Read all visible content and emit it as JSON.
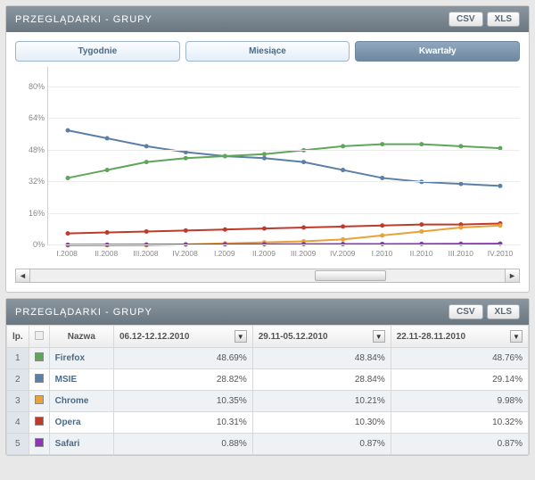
{
  "panel1": {
    "title": "PRZEGLĄDARKI - GRUPY",
    "export_csv": "CSV",
    "export_xls": "XLS",
    "tabs": {
      "weeks": "Tygodnie",
      "months": "Miesiące",
      "quarters": "Kwartały"
    },
    "chart": {
      "ylim": [
        0,
        90
      ],
      "yticks": [
        0,
        16,
        32,
        48,
        64,
        80
      ],
      "ylabels": [
        "0%",
        "16%",
        "32%",
        "48%",
        "64%",
        "80%"
      ],
      "categories": [
        "I.2008",
        "II.2008",
        "III.2008",
        "IV.2008",
        "I.2009",
        "II.2009",
        "III.2009",
        "IV.2009",
        "I.2010",
        "II.2010",
        "III.2010",
        "IV.2010"
      ],
      "grid_color": "#ececec",
      "axis_color": "#d0d0d0",
      "background": "#ffffff",
      "marker_radius": 2.5,
      "line_width": 2,
      "series": [
        {
          "name": "MSIE",
          "color": "#5b7fa6",
          "values": [
            58,
            54,
            50,
            47,
            45,
            44,
            42,
            38,
            34,
            32,
            31,
            30
          ]
        },
        {
          "name": "Firefox",
          "color": "#5fa65b",
          "values": [
            34,
            38,
            42,
            44,
            45,
            46,
            48,
            50,
            51,
            51,
            50,
            49
          ]
        },
        {
          "name": "Opera",
          "color": "#c03a2a",
          "values": [
            6,
            6.5,
            7,
            7.5,
            8,
            8.5,
            9,
            9.5,
            10,
            10.5,
            10.5,
            11
          ]
        },
        {
          "name": "Chrome",
          "color": "#e8a23a",
          "values": [
            0,
            0,
            0,
            0.5,
            1,
            1.5,
            2,
            3,
            5,
            7,
            9,
            10
          ]
        },
        {
          "name": "Safari",
          "color": "#8a3ab0",
          "values": [
            0.3,
            0.35,
            0.4,
            0.45,
            0.5,
            0.55,
            0.6,
            0.65,
            0.7,
            0.75,
            0.8,
            0.87
          ]
        }
      ]
    }
  },
  "panel2": {
    "title": "PRZEGLĄDARKI - GRUPY",
    "export_csv": "CSV",
    "export_xls": "XLS",
    "columns": {
      "lp": "lp.",
      "name": "Nazwa",
      "d1": "06.12-12.12.2010",
      "d2": "29.11-05.12.2010",
      "d3": "22.11-28.11.2010"
    },
    "rows": [
      {
        "lp": "1",
        "color": "#5fa65b",
        "name": "Firefox",
        "v1": "48.69%",
        "v2": "48.84%",
        "v3": "48.76%"
      },
      {
        "lp": "2",
        "color": "#5b7fa6",
        "name": "MSIE",
        "v1": "28.82%",
        "v2": "28.84%",
        "v3": "29.14%"
      },
      {
        "lp": "3",
        "color": "#e8a23a",
        "name": "Chrome",
        "v1": "10.35%",
        "v2": "10.21%",
        "v3": "9.98%"
      },
      {
        "lp": "4",
        "color": "#c03a2a",
        "name": "Opera",
        "v1": "10.31%",
        "v2": "10.30%",
        "v3": "10.32%"
      },
      {
        "lp": "5",
        "color": "#8a3ab0",
        "name": "Safari",
        "v1": "0.88%",
        "v2": "0.87%",
        "v3": "0.87%"
      }
    ]
  }
}
